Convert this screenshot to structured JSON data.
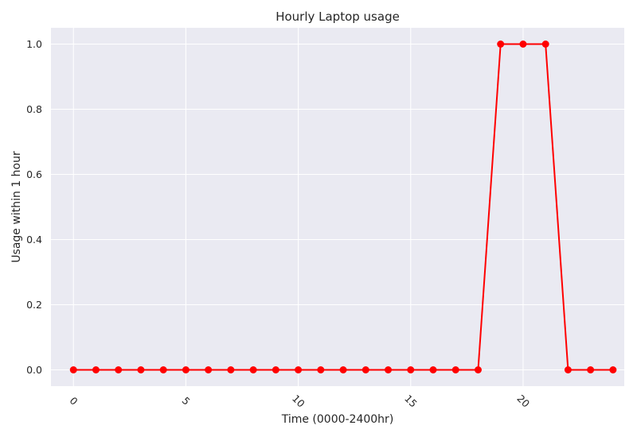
{
  "chart_data": {
    "type": "line",
    "title": "Hourly Laptop usage",
    "xlabel": "Time (0000-2400hr)",
    "ylabel": "Usage within 1 hour",
    "x": [
      0,
      1,
      2,
      3,
      4,
      5,
      6,
      7,
      8,
      9,
      10,
      11,
      12,
      13,
      14,
      15,
      16,
      17,
      18,
      19,
      20,
      21,
      22,
      23,
      24
    ],
    "series": [
      {
        "values": [
          0,
          0,
          0,
          0,
          0,
          0,
          0,
          0,
          0,
          0,
          0,
          0,
          0,
          0,
          0,
          0,
          0,
          0,
          0,
          1,
          1,
          1,
          0,
          0,
          0
        ]
      }
    ],
    "xlim": [
      -1,
      24.5
    ],
    "ylim": [
      -0.05,
      1.05
    ],
    "xticks": [
      "0",
      "5",
      "10",
      "15",
      "20"
    ],
    "yticks": [
      "0.0",
      "0.2",
      "0.4",
      "0.6",
      "0.8",
      "1.0"
    ],
    "xtick_rotation_deg": 45,
    "grid": true,
    "background": "#eaeaf2",
    "gridline_color": "#ffffff",
    "line_color": "#ff0000",
    "marker": "circle"
  }
}
